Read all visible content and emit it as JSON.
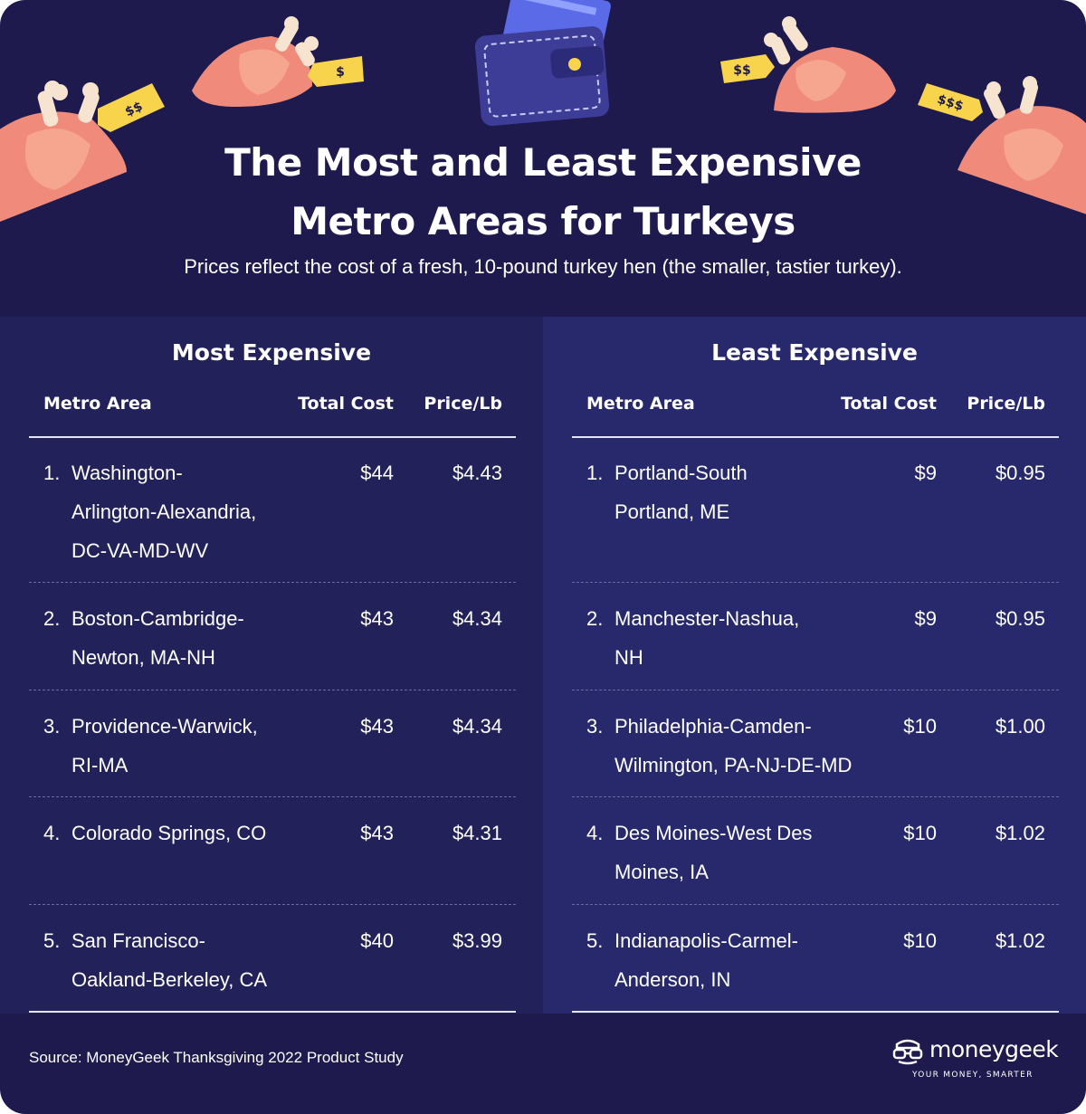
{
  "header": {
    "title_line1": "The Most and Least Expensive",
    "title_line2": "Metro Areas for Turkeys",
    "subtitle": "Prices reflect the cost of a fresh, 10-pound turkey hen (the smaller, tastier turkey)."
  },
  "decorations": {
    "tag_1": "$$",
    "tag_2": "$",
    "tag_3": "$$",
    "tag_4": "$$$",
    "icons": [
      "turkey-icon",
      "price-tag-icon",
      "wallet-icon",
      "credit-card-icon"
    ]
  },
  "columns": {
    "metro": "Metro Area",
    "total_cost": "Total Cost",
    "price_lb": "Price/Lb"
  },
  "most_expensive": {
    "title": "Most Expensive",
    "rows": [
      {
        "rank": "1.",
        "metro_lines": [
          "Washington-",
          "Arlington-Alexandria,",
          "DC-VA-MD-WV"
        ],
        "total_cost": "$44",
        "price_lb": "$4.43"
      },
      {
        "rank": "2.",
        "metro_lines": [
          "Boston-Cambridge-",
          "Newton, MA-NH"
        ],
        "total_cost": "$43",
        "price_lb": "$4.34"
      },
      {
        "rank": "3.",
        "metro_lines": [
          "Providence-Warwick,",
          "RI-MA"
        ],
        "total_cost": "$43",
        "price_lb": "$4.34"
      },
      {
        "rank": "4.",
        "metro_lines": [
          "Colorado Springs, CO"
        ],
        "total_cost": "$43",
        "price_lb": "$4.31"
      },
      {
        "rank": "5.",
        "metro_lines": [
          "San Francisco-",
          "Oakland-Berkeley, CA"
        ],
        "total_cost": "$40",
        "price_lb": "$3.99"
      }
    ]
  },
  "least_expensive": {
    "title": "Least Expensive",
    "rows": [
      {
        "rank": "1.",
        "metro_lines": [
          "Portland-South",
          "Portland, ME"
        ],
        "total_cost": "$9",
        "price_lb": "$0.95"
      },
      {
        "rank": "2.",
        "metro_lines": [
          "Manchester-Nashua,",
          "NH"
        ],
        "total_cost": "$9",
        "price_lb": "$0.95"
      },
      {
        "rank": "3.",
        "metro_lines": [
          "Philadelphia-Camden-",
          "Wilmington, PA-NJ-DE-MD"
        ],
        "total_cost": "$10",
        "price_lb": "$1.00"
      },
      {
        "rank": "4.",
        "metro_lines": [
          "Des Moines-West Des",
          "Moines, IA"
        ],
        "total_cost": "$10",
        "price_lb": "$1.02"
      },
      {
        "rank": "5.",
        "metro_lines": [
          "Indianapolis-Carmel-",
          "Anderson, IN"
        ],
        "total_cost": "$10",
        "price_lb": "$1.02"
      }
    ]
  },
  "footer": {
    "source": "Source: MoneyGeek Thanksgiving 2022 Product Study",
    "brand": "moneygeek",
    "tagline": "YOUR MONEY, SMARTER"
  },
  "colors": {
    "background": "#1e1a4d",
    "panel_left": "#222159",
    "panel_right": "#27296c",
    "turkey": "#f08a7a",
    "tag": "#f7d44c",
    "wallet": "#4343a0",
    "card": "#5b6be8"
  }
}
